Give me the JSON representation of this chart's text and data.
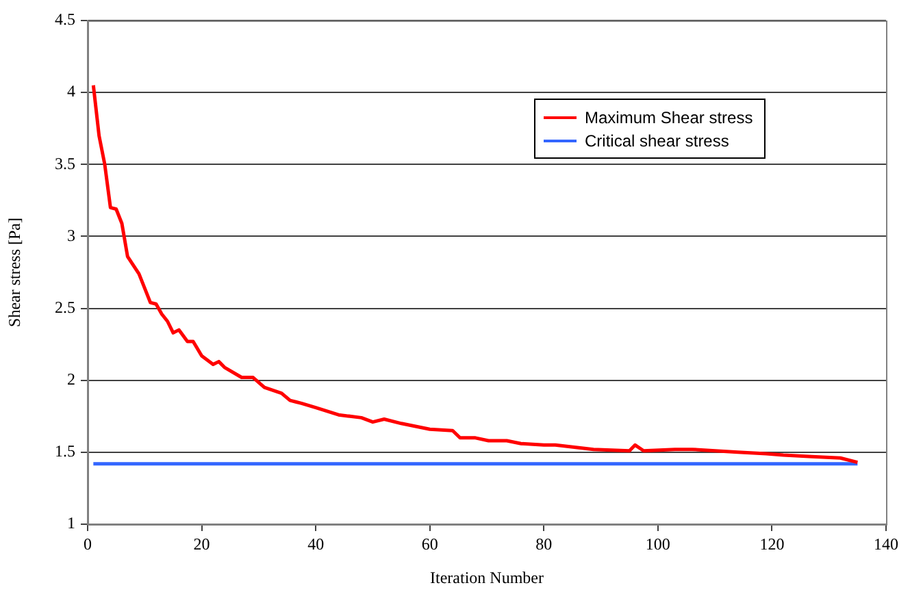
{
  "chart_data": {
    "type": "line",
    "xlabel": "Iteration Number",
    "ylabel": "Shear stress [Pa]",
    "xlim": [
      0,
      140
    ],
    "xticks": [
      0,
      20,
      40,
      60,
      80,
      100,
      120,
      140
    ],
    "ylim": [
      1,
      4.5
    ],
    "yticks": [
      1,
      1.5,
      2,
      2.5,
      3,
      3.5,
      4,
      4.5
    ],
    "grid": "y",
    "legend": "top right",
    "marker": "none",
    "line_style": "solid",
    "series": [
      {
        "name": "Maximum Shear stress",
        "color": "#ff0000",
        "x": [
          1,
          2,
          3,
          4,
          5,
          6,
          7,
          9,
          11,
          12,
          13,
          14,
          15,
          16,
          17.5,
          18.5,
          20,
          22,
          23,
          24,
          27,
          29,
          31,
          34,
          35.5,
          36.5,
          37.5,
          40,
          44,
          46,
          48,
          50,
          52,
          55,
          60,
          64,
          65.3,
          68,
          70.3,
          73.5,
          76,
          80,
          82,
          88.7,
          95,
          96,
          97.5,
          103,
          106,
          114,
          119,
          122,
          127,
          132,
          135
        ],
        "values": [
          4.05,
          3.7,
          3.5,
          3.2,
          3.19,
          3.09,
          2.86,
          2.74,
          2.54,
          2.53,
          2.46,
          2.41,
          2.33,
          2.35,
          2.27,
          2.27,
          2.17,
          2.11,
          2.13,
          2.09,
          2.02,
          2.02,
          1.95,
          1.91,
          1.86,
          1.85,
          1.84,
          1.81,
          1.76,
          1.75,
          1.74,
          1.71,
          1.73,
          1.7,
          1.66,
          1.65,
          1.6,
          1.6,
          1.58,
          1.58,
          1.56,
          1.55,
          1.55,
          1.52,
          1.51,
          1.55,
          1.51,
          1.52,
          1.52,
          1.5,
          1.49,
          1.48,
          1.47,
          1.46,
          1.43
        ]
      },
      {
        "name": "Critical shear stress",
        "color": "#3366ff",
        "x": [
          1,
          135
        ],
        "values": [
          1.42,
          1.42
        ]
      }
    ]
  }
}
